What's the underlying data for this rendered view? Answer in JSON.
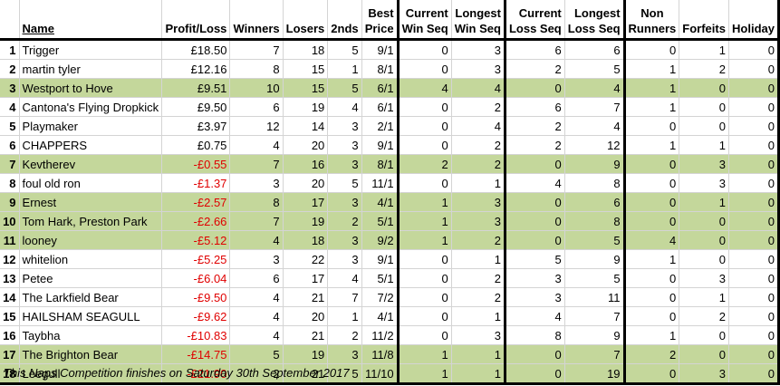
{
  "headers": {
    "name": "Name",
    "profit": "Profit/Loss",
    "winners": "Winners",
    "losers": "Losers",
    "seconds": "2nds",
    "best_price": [
      "Best",
      "Price"
    ],
    "current_win_seq": [
      "Current",
      "Win Seq"
    ],
    "longest_win_seq": [
      "Longest",
      "Win Seq"
    ],
    "current_loss_seq": [
      "Current",
      "Loss Seq"
    ],
    "longest_loss_seq": [
      "Longest",
      "Loss Seq"
    ],
    "non_runners": [
      "Non",
      "Runners"
    ],
    "forfeits": "Forfeits",
    "holiday": "Holiday"
  },
  "rows": [
    {
      "rank": "1",
      "name": "Trigger",
      "profit": "£18.50",
      "negative": false,
      "green": false,
      "winners": "7",
      "losers": "18",
      "seconds": "5",
      "best_price": "9/1",
      "cur_win": "0",
      "long_win": "3",
      "cur_loss": "6",
      "long_loss": "6",
      "non_runners": "0",
      "forfeits": "1",
      "holiday": "0"
    },
    {
      "rank": "2",
      "name": "martin tyler",
      "profit": "£12.16",
      "negative": false,
      "green": false,
      "winners": "8",
      "losers": "15",
      "seconds": "1",
      "best_price": "8/1",
      "cur_win": "0",
      "long_win": "3",
      "cur_loss": "2",
      "long_loss": "5",
      "non_runners": "1",
      "forfeits": "2",
      "holiday": "0"
    },
    {
      "rank": "3",
      "name": "Westport to Hove",
      "profit": "£9.51",
      "negative": false,
      "green": true,
      "winners": "10",
      "losers": "15",
      "seconds": "5",
      "best_price": "6/1",
      "cur_win": "4",
      "long_win": "4",
      "cur_loss": "0",
      "long_loss": "4",
      "non_runners": "1",
      "forfeits": "0",
      "holiday": "0"
    },
    {
      "rank": "4",
      "name": "Cantona's Flying Dropkick",
      "profit": "£9.50",
      "negative": false,
      "green": false,
      "winners": "6",
      "losers": "19",
      "seconds": "4",
      "best_price": "6/1",
      "cur_win": "0",
      "long_win": "2",
      "cur_loss": "6",
      "long_loss": "7",
      "non_runners": "1",
      "forfeits": "0",
      "holiday": "0"
    },
    {
      "rank": "5",
      "name": "Playmaker",
      "profit": "£3.97",
      "negative": false,
      "green": false,
      "winners": "12",
      "losers": "14",
      "seconds": "3",
      "best_price": "2/1",
      "cur_win": "0",
      "long_win": "4",
      "cur_loss": "2",
      "long_loss": "4",
      "non_runners": "0",
      "forfeits": "0",
      "holiday": "0"
    },
    {
      "rank": "6",
      "name": "CHAPPERS",
      "profit": "£0.75",
      "negative": false,
      "green": false,
      "winners": "4",
      "losers": "20",
      "seconds": "3",
      "best_price": "9/1",
      "cur_win": "0",
      "long_win": "2",
      "cur_loss": "2",
      "long_loss": "12",
      "non_runners": "1",
      "forfeits": "1",
      "holiday": "0"
    },
    {
      "rank": "7",
      "name": "Kevtherev",
      "profit": "-£0.55",
      "negative": true,
      "green": true,
      "winners": "7",
      "losers": "16",
      "seconds": "3",
      "best_price": "8/1",
      "cur_win": "2",
      "long_win": "2",
      "cur_loss": "0",
      "long_loss": "9",
      "non_runners": "0",
      "forfeits": "3",
      "holiday": "0"
    },
    {
      "rank": "8",
      "name": "foul old ron",
      "profit": "-£1.37",
      "negative": true,
      "green": false,
      "winners": "3",
      "losers": "20",
      "seconds": "5",
      "best_price": "11/1",
      "cur_win": "0",
      "long_win": "1",
      "cur_loss": "4",
      "long_loss": "8",
      "non_runners": "0",
      "forfeits": "3",
      "holiday": "0"
    },
    {
      "rank": "9",
      "name": "Ernest",
      "profit": "-£2.57",
      "negative": true,
      "green": true,
      "winners": "8",
      "losers": "17",
      "seconds": "3",
      "best_price": "4/1",
      "cur_win": "1",
      "long_win": "3",
      "cur_loss": "0",
      "long_loss": "6",
      "non_runners": "0",
      "forfeits": "1",
      "holiday": "0"
    },
    {
      "rank": "10",
      "name": "Tom Hark, Preston Park",
      "profit": "-£2.66",
      "negative": true,
      "green": true,
      "winners": "7",
      "losers": "19",
      "seconds": "2",
      "best_price": "5/1",
      "cur_win": "1",
      "long_win": "3",
      "cur_loss": "0",
      "long_loss": "8",
      "non_runners": "0",
      "forfeits": "0",
      "holiday": "0"
    },
    {
      "rank": "11",
      "name": "looney",
      "profit": "-£5.12",
      "negative": true,
      "green": true,
      "winners": "4",
      "losers": "18",
      "seconds": "3",
      "best_price": "9/2",
      "cur_win": "1",
      "long_win": "2",
      "cur_loss": "0",
      "long_loss": "5",
      "non_runners": "4",
      "forfeits": "0",
      "holiday": "0"
    },
    {
      "rank": "12",
      "name": "whitelion",
      "profit": "-£5.25",
      "negative": true,
      "green": false,
      "winners": "3",
      "losers": "22",
      "seconds": "3",
      "best_price": "9/1",
      "cur_win": "0",
      "long_win": "1",
      "cur_loss": "5",
      "long_loss": "9",
      "non_runners": "1",
      "forfeits": "0",
      "holiday": "0"
    },
    {
      "rank": "13",
      "name": "Petee",
      "profit": "-£6.04",
      "negative": true,
      "green": false,
      "winners": "6",
      "losers": "17",
      "seconds": "4",
      "best_price": "5/1",
      "cur_win": "0",
      "long_win": "2",
      "cur_loss": "3",
      "long_loss": "5",
      "non_runners": "0",
      "forfeits": "3",
      "holiday": "0"
    },
    {
      "rank": "14",
      "name": "The Larkfield Bear",
      "profit": "-£9.50",
      "negative": true,
      "green": false,
      "winners": "4",
      "losers": "21",
      "seconds": "7",
      "best_price": "7/2",
      "cur_win": "0",
      "long_win": "2",
      "cur_loss": "3",
      "long_loss": "11",
      "non_runners": "0",
      "forfeits": "1",
      "holiday": "0"
    },
    {
      "rank": "15",
      "name": "HAILSHAM SEAGULL",
      "profit": "-£9.62",
      "negative": true,
      "green": false,
      "winners": "4",
      "losers": "20",
      "seconds": "1",
      "best_price": "4/1",
      "cur_win": "0",
      "long_win": "1",
      "cur_loss": "4",
      "long_loss": "7",
      "non_runners": "0",
      "forfeits": "2",
      "holiday": "0"
    },
    {
      "rank": "16",
      "name": "Taybha",
      "profit": "-£10.83",
      "negative": true,
      "green": false,
      "winners": "4",
      "losers": "21",
      "seconds": "2",
      "best_price": "11/2",
      "cur_win": "0",
      "long_win": "3",
      "cur_loss": "8",
      "long_loss": "9",
      "non_runners": "1",
      "forfeits": "0",
      "holiday": "0"
    },
    {
      "rank": "17",
      "name": "The Brighton Bear",
      "profit": "-£14.75",
      "negative": true,
      "green": true,
      "winners": "5",
      "losers": "19",
      "seconds": "3",
      "best_price": "11/8",
      "cur_win": "1",
      "long_win": "1",
      "cur_loss": "0",
      "long_loss": "7",
      "non_runners": "2",
      "forfeits": "0",
      "holiday": "0"
    },
    {
      "rank": "18",
      "name": "Leegull",
      "profit": "-£21.90",
      "negative": true,
      "green": true,
      "winners": "2",
      "losers": "21",
      "seconds": "5",
      "best_price": "11/10",
      "cur_win": "1",
      "long_win": "1",
      "cur_loss": "0",
      "long_loss": "19",
      "non_runners": "0",
      "forfeits": "3",
      "holiday": "0"
    }
  ],
  "footer": "This Naps Competition finishes on Saturday 30th September 2017",
  "colors": {
    "green_row": "#c4d79b",
    "negative_text": "#e00000"
  }
}
